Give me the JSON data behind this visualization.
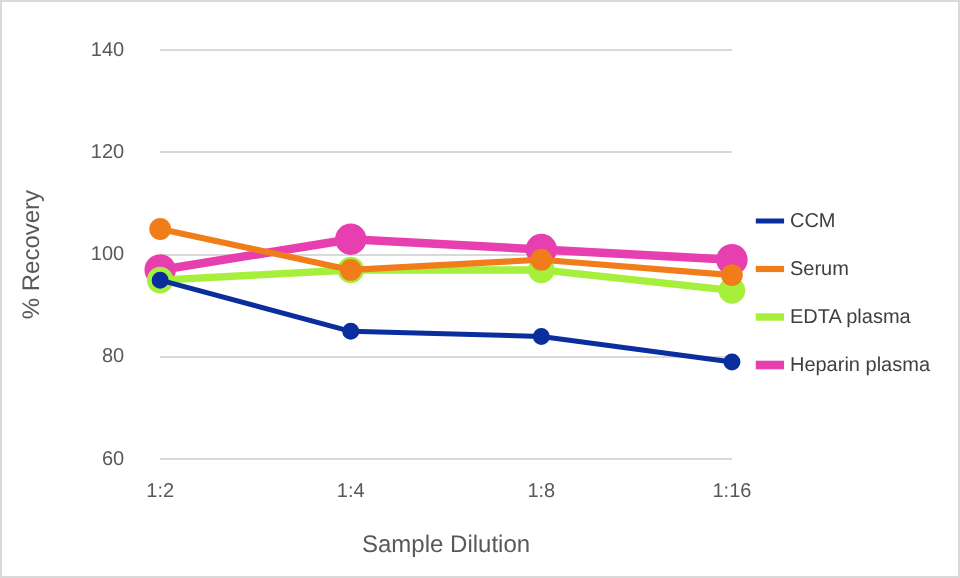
{
  "chart_data": {
    "type": "line",
    "xlabel": "Sample Dilution",
    "ylabel": "% Recovery",
    "categories": [
      "1:2",
      "1:4",
      "1:8",
      "1:16"
    ],
    "series": [
      {
        "name": "CCM",
        "color": "#0b2e9e",
        "values": [
          95,
          85,
          84,
          79
        ]
      },
      {
        "name": "Serum",
        "color": "#f07d1a",
        "values": [
          105,
          97,
          99,
          96
        ]
      },
      {
        "name": "EDTA plasma",
        "color": "#a6f03c",
        "values": [
          95,
          97,
          97,
          93
        ]
      },
      {
        "name": "Heparin plasma",
        "color": "#e83fb0",
        "values": [
          97,
          103,
          101,
          99
        ]
      }
    ],
    "ylim": [
      60,
      140
    ],
    "yticks": [
      60,
      80,
      100,
      120,
      140
    ],
    "grid": "y",
    "legend": "right",
    "marker": "circle",
    "line_style": "solid"
  }
}
